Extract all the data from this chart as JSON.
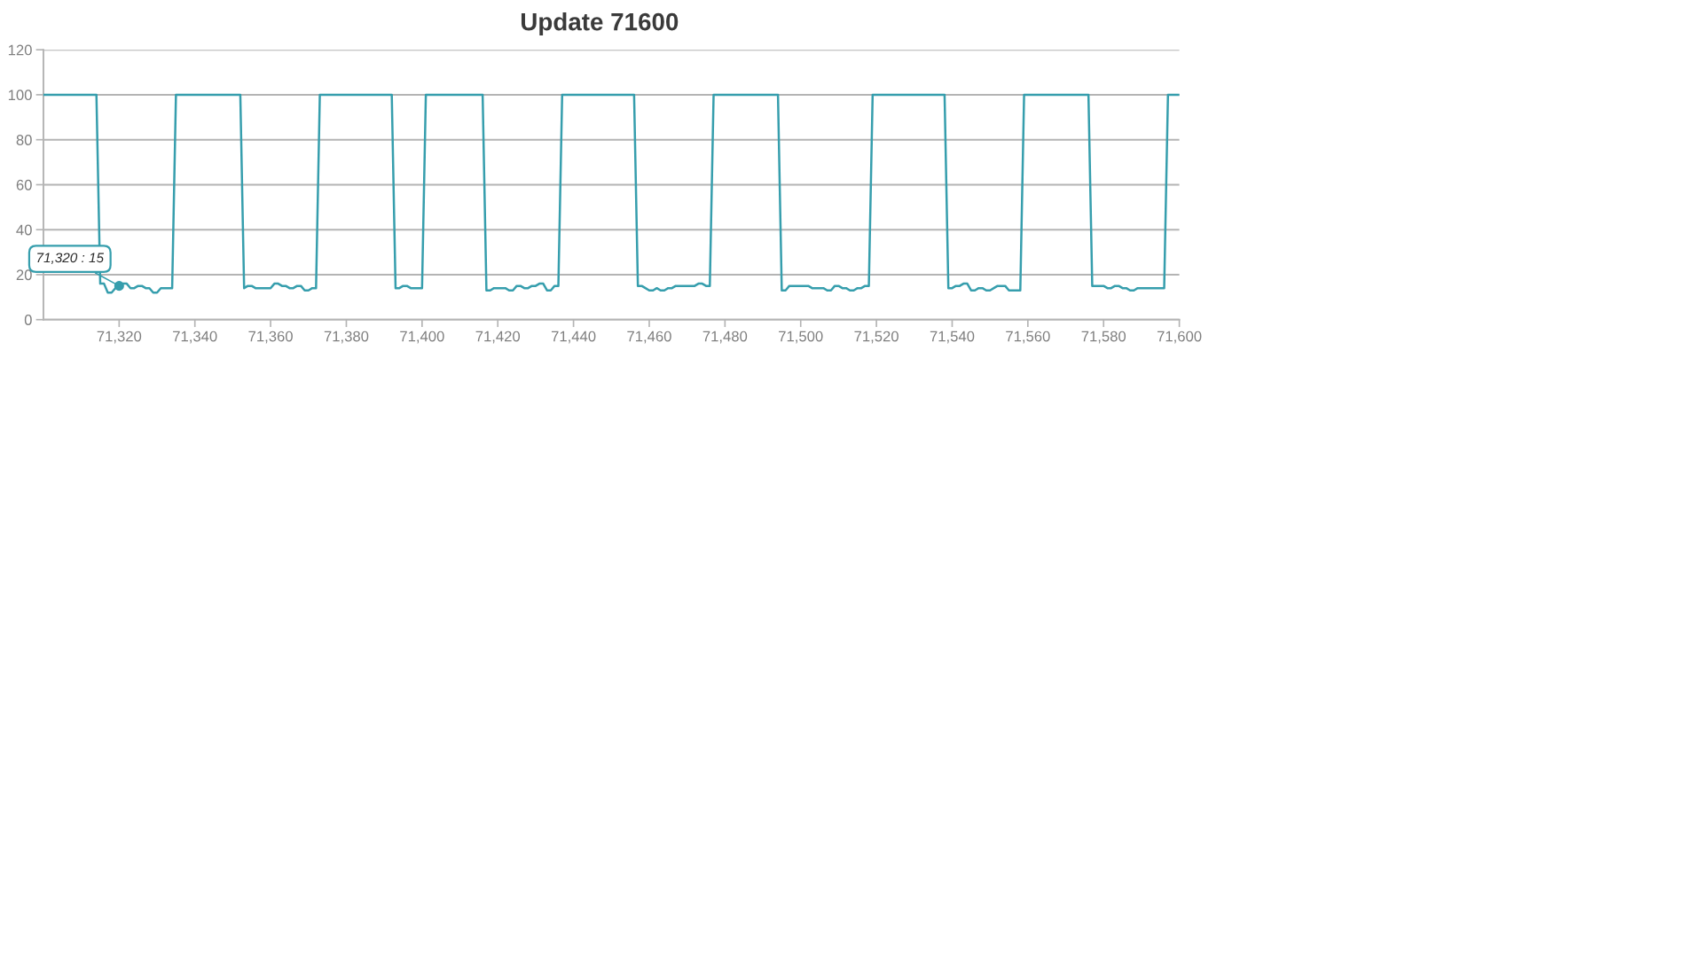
{
  "chart_data": {
    "type": "line",
    "title": "Update 71600",
    "x": [
      71300,
      71314,
      71315,
      71316,
      71317,
      71318,
      71319,
      71320,
      71321,
      71322,
      71323,
      71324,
      71325,
      71326,
      71327,
      71328,
      71329,
      71330,
      71331,
      71334,
      71335,
      71352,
      71353,
      71354,
      71355,
      71356,
      71360,
      71361,
      71362,
      71363,
      71364,
      71365,
      71366,
      71367,
      71368,
      71369,
      71370,
      71371,
      71372,
      71373,
      71392,
      71393,
      71394,
      71395,
      71396,
      71397,
      71400,
      71401,
      71416,
      71417,
      71418,
      71419,
      71422,
      71423,
      71424,
      71425,
      71426,
      71427,
      71428,
      71429,
      71430,
      71431,
      71432,
      71433,
      71434,
      71435,
      71436,
      71437,
      71456,
      71457,
      71458,
      71459,
      71460,
      71461,
      71462,
      71463,
      71464,
      71465,
      71466,
      71467,
      71472,
      71473,
      71474,
      71475,
      71476,
      71477,
      71494,
      71495,
      71496,
      71497,
      71502,
      71503,
      71506,
      71507,
      71508,
      71509,
      71510,
      71511,
      71512,
      71513,
      71514,
      71515,
      71516,
      71517,
      71518,
      71519,
      71538,
      71539,
      71540,
      71541,
      71542,
      71543,
      71544,
      71545,
      71546,
      71547,
      71548,
      71549,
      71550,
      71551,
      71552,
      71554,
      71555,
      71558,
      71559,
      71576,
      71577,
      71580,
      71581,
      71582,
      71583,
      71584,
      71585,
      71586,
      71587,
      71588,
      71589,
      71596,
      71597,
      71600
    ],
    "series": [
      {
        "color": "#369ead",
        "values": [
          100,
          100,
          16,
          16,
          12,
          12,
          14,
          15,
          16,
          16,
          14,
          14,
          15,
          15,
          14,
          14,
          12,
          12,
          14,
          14,
          100,
          100,
          14,
          15,
          15,
          14,
          14,
          16,
          16,
          15,
          15,
          14,
          14,
          15,
          15,
          13,
          13,
          14,
          14,
          100,
          100,
          14,
          14,
          15,
          15,
          14,
          14,
          100,
          100,
          13,
          13,
          14,
          14,
          13,
          13,
          15,
          15,
          14,
          14,
          15,
          15,
          16,
          16,
          13,
          13,
          15,
          15,
          100,
          100,
          15,
          15,
          14,
          13,
          13,
          14,
          13,
          13,
          14,
          14,
          15,
          15,
          16,
          16,
          15,
          15,
          100,
          100,
          13,
          13,
          15,
          15,
          14,
          14,
          13,
          13,
          15,
          15,
          14,
          14,
          13,
          13,
          14,
          14,
          15,
          15,
          100,
          100,
          14,
          14,
          15,
          15,
          16,
          16,
          13,
          13,
          14,
          14,
          13,
          13,
          14,
          15,
          15,
          13,
          13,
          100,
          100,
          15,
          15,
          14,
          14,
          15,
          15,
          14,
          14,
          13,
          13,
          14,
          14,
          100,
          100
        ]
      }
    ],
    "xlim": [
      71300,
      71600
    ],
    "ylim": [
      0,
      120
    ],
    "xticks": [
      {
        "value": 71320,
        "label": "71,320"
      },
      {
        "value": 71340,
        "label": "71,340"
      },
      {
        "value": 71360,
        "label": "71,360"
      },
      {
        "value": 71380,
        "label": "71,380"
      },
      {
        "value": 71400,
        "label": "71,400"
      },
      {
        "value": 71420,
        "label": "71,420"
      },
      {
        "value": 71440,
        "label": "71,440"
      },
      {
        "value": 71460,
        "label": "71,460"
      },
      {
        "value": 71480,
        "label": "71,480"
      },
      {
        "value": 71500,
        "label": "71,500"
      },
      {
        "value": 71520,
        "label": "71,520"
      },
      {
        "value": 71540,
        "label": "71,540"
      },
      {
        "value": 71560,
        "label": "71,560"
      },
      {
        "value": 71580,
        "label": "71,580"
      },
      {
        "value": 71600,
        "label": "71,600"
      }
    ],
    "yticks": [
      0,
      20,
      40,
      60,
      80,
      100,
      120
    ],
    "grid": "y",
    "line_style": "solid",
    "annotations": [
      {
        "text": "71,320 : 15",
        "x": 71320,
        "y": 15
      }
    ]
  }
}
